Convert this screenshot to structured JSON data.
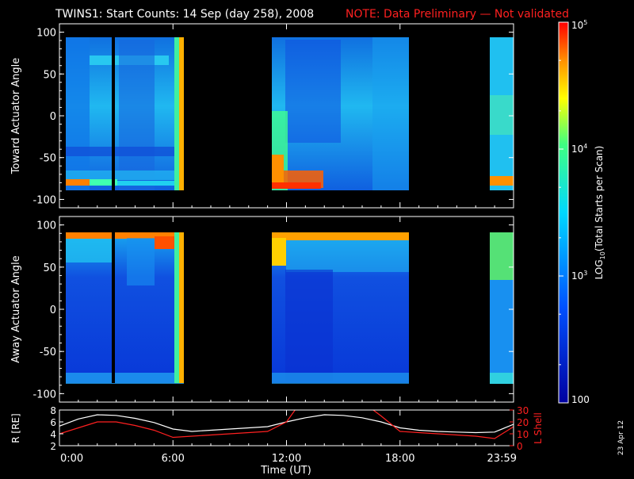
{
  "header": {
    "title": "TWINS1: Start Counts: 14 Sep (day 258), 2008",
    "note": "NOTE: Data Preliminary — Not validated"
  },
  "side_stamp": "23 Apr 12",
  "colors": {
    "background": "#000000",
    "axis": "#ffffff",
    "note": "#ff2020",
    "r_line": "#ffffff",
    "l_line": "#ff2020"
  },
  "chart_data": [
    {
      "type": "heatmap",
      "ylabel": "Toward Actuator Angle",
      "ylim": [
        -110,
        110
      ],
      "yticks": [
        "100",
        "50",
        "0",
        "-50",
        "-100"
      ],
      "xlim_hours": [
        0,
        24
      ],
      "data_gaps_hours": [
        [
          6.6,
          11.7
        ],
        [
          18.1,
          22.4
        ]
      ]
    },
    {
      "type": "heatmap",
      "ylabel": "Away Actuator Angle",
      "ylim": [
        -110,
        110
      ],
      "yticks": [
        "100",
        "50",
        "0",
        "-50",
        "-100"
      ],
      "xlim_hours": [
        0,
        24
      ],
      "data_gaps_hours": [
        [
          6.6,
          11.7
        ],
        [
          18.1,
          22.4
        ]
      ]
    },
    {
      "type": "line",
      "xlabel": "Time (UT)",
      "xticks": [
        "0:00",
        "6:00",
        "12:00",
        "18:00",
        "23:59"
      ],
      "left_axis": {
        "label": "R [RE]",
        "ticks": [
          "8",
          "6",
          "4",
          "2"
        ],
        "ylim": [
          2,
          8
        ]
      },
      "right_axis": {
        "label": "L Shell",
        "ticks": [
          "30",
          "20",
          "10",
          "0"
        ],
        "ylim": [
          0,
          30
        ]
      },
      "series": [
        {
          "name": "R [RE]",
          "axis": "left",
          "x": [
            0,
            1,
            2,
            3,
            4,
            5,
            6,
            7,
            8,
            9,
            10,
            11,
            12,
            13,
            14,
            15,
            16,
            17,
            18,
            19,
            20,
            21,
            22,
            23,
            24
          ],
          "y": [
            5.3,
            6.5,
            7.2,
            7.1,
            6.6,
            5.9,
            4.8,
            4.4,
            4.6,
            4.8,
            5.0,
            5.2,
            6.0,
            6.7,
            7.2,
            7.1,
            6.7,
            6.0,
            5.0,
            4.6,
            4.4,
            4.3,
            4.2,
            4.3,
            5.6
          ]
        },
        {
          "name": "L Shell",
          "axis": "right",
          "x": [
            0,
            1,
            2,
            3,
            4,
            5,
            6,
            7,
            8,
            9,
            10,
            11,
            12,
            12.5,
            16.5,
            17,
            18,
            19,
            20,
            21,
            22,
            23,
            24
          ],
          "y": [
            10,
            15,
            20,
            20,
            17,
            13,
            7,
            8,
            9,
            10,
            11,
            12,
            20,
            31,
            31,
            25,
            12,
            11,
            10,
            9,
            8,
            6,
            16
          ]
        }
      ]
    }
  ],
  "colorbar": {
    "label": "LOG10(Total Starts per Scan)",
    "label_base": "LOG",
    "label_sub": "10",
    "label_rest": "(Total Starts per Scan)",
    "ticks": [
      "10^5",
      "10^4",
      "10^3",
      "100"
    ],
    "range": [
      100,
      100000
    ]
  }
}
